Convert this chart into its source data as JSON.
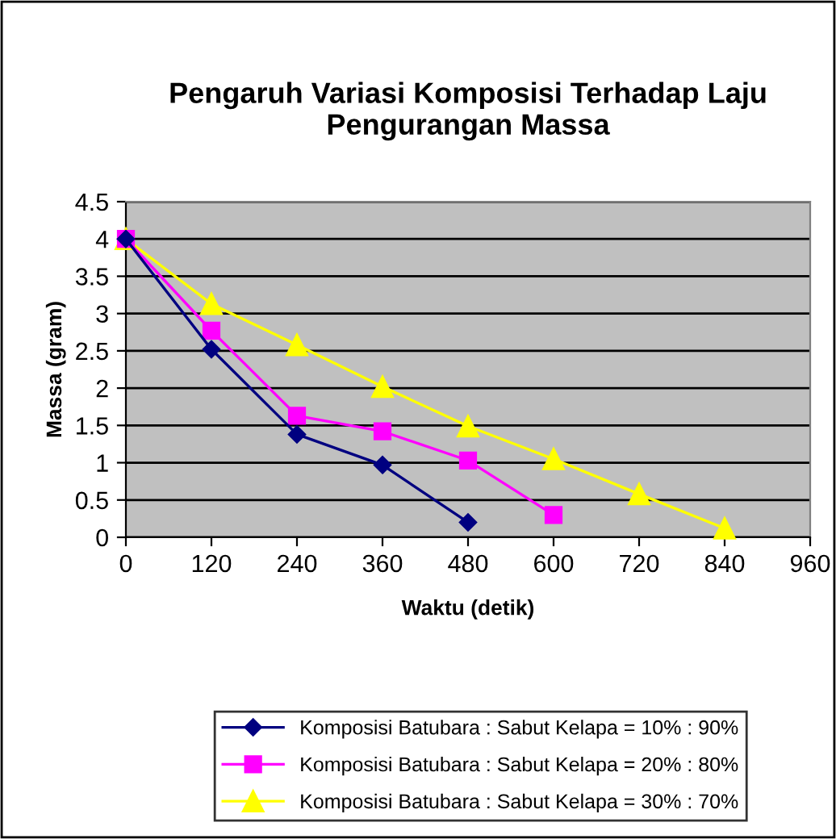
{
  "chart_data": {
    "type": "line",
    "title": "Pengaruh Variasi Komposisi Terhadap Laju\nPengurangan Massa",
    "xlabel": "Waktu (detik)",
    "ylabel": "Massa (gram)",
    "series": [
      {
        "name": "Komposisi Batubara : Sabut Kelapa = 10% : 90%",
        "color": "#000080",
        "marker": "diamond",
        "x": [
          0,
          120,
          240,
          360,
          480
        ],
        "values": [
          4,
          2.52,
          1.38,
          0.97,
          0.2
        ]
      },
      {
        "name": "Komposisi Batubara : Sabut Kelapa = 20% : 80%",
        "color": "#ff00ff",
        "marker": "square",
        "x": [
          0,
          120,
          240,
          360,
          480,
          600
        ],
        "values": [
          4,
          2.77,
          1.63,
          1.42,
          1.03,
          0.3
        ]
      },
      {
        "name": "Komposisi Batubara : Sabut Kelapa = 30% : 70%",
        "color": "#ffff00",
        "marker": "triangle",
        "x": [
          0,
          120,
          240,
          360,
          480,
          600,
          720,
          840
        ],
        "values": [
          4,
          3.13,
          2.58,
          2.02,
          1.49,
          1.05,
          0.58,
          0.12
        ]
      }
    ],
    "xlim": [
      0,
      960
    ],
    "xticks": [
      0,
      120,
      240,
      360,
      480,
      600,
      720,
      840,
      960
    ],
    "ylim": [
      0,
      4.5
    ],
    "yticks": [
      0,
      0.5,
      1,
      1.5,
      2,
      2.5,
      3,
      3.5,
      4,
      4.5
    ],
    "grid": "y",
    "legend": "bottom",
    "line_style": "solid"
  }
}
